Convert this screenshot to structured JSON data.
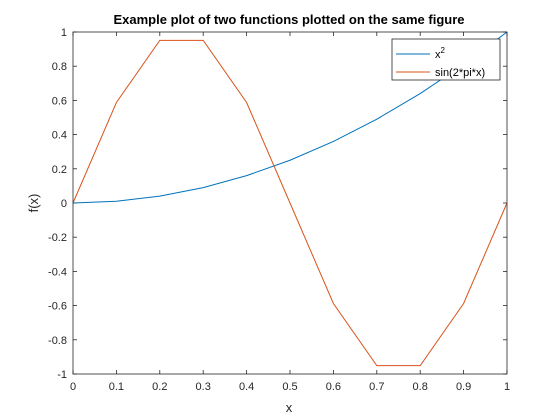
{
  "chart_data": {
    "type": "line",
    "title": "Example plot of two functions plotted on the same figure",
    "xlabel": "x",
    "ylabel": "f(x)",
    "xlim": [
      0,
      1
    ],
    "ylim": [
      -1,
      1
    ],
    "grid": false,
    "box": true,
    "legend_position": "top-right",
    "x": [
      0,
      0.1,
      0.2,
      0.3,
      0.4,
      0.5,
      0.6,
      0.7,
      0.8,
      0.9,
      1.0
    ],
    "xticks": [
      "0",
      "0.1",
      "0.2",
      "0.3",
      "0.4",
      "0.5",
      "0.6",
      "0.7",
      "0.8",
      "0.9",
      "1"
    ],
    "yticks": [
      -1,
      -0.8,
      -0.6,
      -0.4,
      -0.2,
      0,
      0.2,
      0.4,
      0.6,
      0.8,
      1
    ],
    "ytick_labels": [
      "-1",
      "-0.8",
      "-0.6",
      "-0.4",
      "-0.2",
      "0",
      "0.2",
      "0.4",
      "0.6",
      "0.8",
      "1"
    ],
    "series": [
      {
        "name_base": "x",
        "name_sup": "2",
        "color": "#0072BD",
        "values": [
          0,
          0.01,
          0.04,
          0.09,
          0.16,
          0.25,
          0.36,
          0.49,
          0.64,
          0.81,
          1.0
        ]
      },
      {
        "name_base": "sin(2*pi*x)",
        "name_sup": "",
        "color": "#D95319",
        "values": [
          0,
          0.5878,
          0.9511,
          0.9511,
          0.5878,
          0,
          -0.5878,
          -0.9511,
          -0.9511,
          -0.5878,
          0
        ]
      }
    ]
  }
}
